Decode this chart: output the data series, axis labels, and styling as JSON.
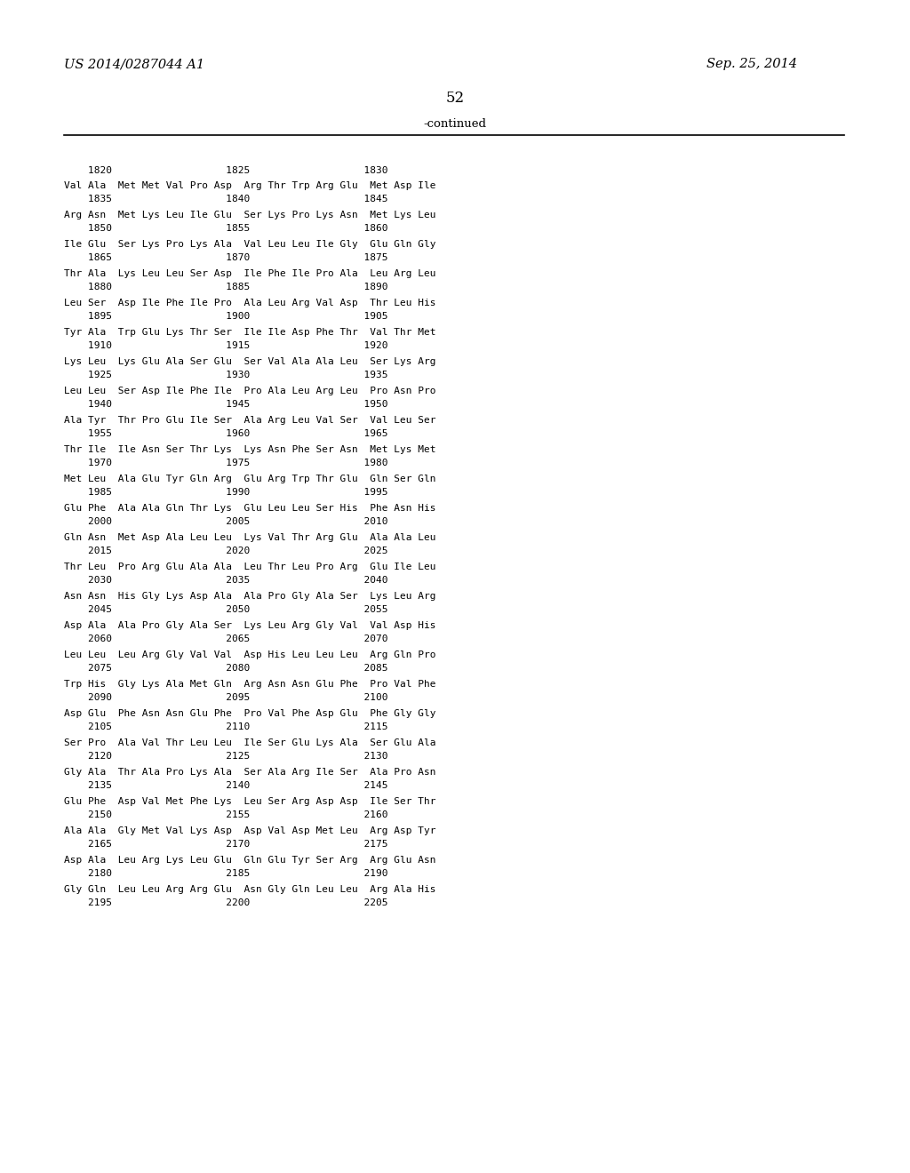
{
  "patent_number": "US 2014/0287044 A1",
  "date": "Sep. 25, 2014",
  "page_number": "52",
  "continued_label": "-continued",
  "background_color": "#ffffff",
  "text_color": "#000000",
  "blocks": [
    {
      "seq": "Val Ala  Met Met Val Pro Asp  Arg Thr Trp Arg Glu  Met Asp Ile",
      "nums": "    1835                   1840                   1845"
    },
    {
      "seq": "Arg Asn  Met Lys Leu Ile Glu  Ser Lys Pro Lys Asn  Met Lys Leu",
      "nums": "    1850                   1855                   1860"
    },
    {
      "seq": "Ile Glu  Ser Lys Pro Lys Ala  Val Leu Leu Ile Gly  Glu Gln Gly",
      "nums": "    1865                   1870                   1875"
    },
    {
      "seq": "Thr Ala  Lys Leu Leu Ser Asp  Ile Phe Ile Pro Ala  Leu Arg Leu",
      "nums": "    1880                   1885                   1890"
    },
    {
      "seq": "Leu Ser  Asp Ile Phe Ile Pro  Ala Leu Arg Val Asp  Thr Leu His",
      "nums": "    1895                   1900                   1905"
    },
    {
      "seq": "Tyr Ala  Trp Glu Lys Thr Ser  Ile Ile Asp Phe Thr  Val Thr Met",
      "nums": "    1910                   1915                   1920"
    },
    {
      "seq": "Lys Leu  Lys Glu Ala Ser Glu  Ser Val Ala Ala Leu  Ser Lys Arg",
      "nums": "    1925                   1930                   1935"
    },
    {
      "seq": "Leu Leu  Ser Asp Ile Phe Ile  Pro Ala Leu Arg Leu  Pro Asn Pro",
      "nums": "    1940                   1945                   1950"
    },
    {
      "seq": "Ala Tyr  Thr Pro Glu Ile Ser  Ala Arg Leu Val Ser  Val Leu Ser",
      "nums": "    1955                   1960                   1965"
    },
    {
      "seq": "Thr Ile  Ile Asn Ser Thr Lys  Lys Asn Phe Ser Asn  Met Lys Met",
      "nums": "    1970                   1975                   1980"
    },
    {
      "seq": "Met Leu  Ala Glu Tyr Gln Arg  Glu Arg Trp Thr Glu  Gln Ser Gln",
      "nums": "    1985                   1990                   1995"
    },
    {
      "seq": "Glu Phe  Ala Ala Gln Thr Lys  Glu Leu Leu Ser His  Phe Asn His",
      "nums": "    2000                   2005                   2010"
    },
    {
      "seq": "Gln Asn  Met Asp Ala Leu Leu  Lys Val Thr Arg Glu  Ala Ala Leu",
      "nums": "    2015                   2020                   2025"
    },
    {
      "seq": "Thr Leu  Pro Arg Glu Ala Ala  Leu Thr Leu Pro Arg  Glu Ile Leu",
      "nums": "    2030                   2035                   2040"
    },
    {
      "seq": "Asn Asn  His Gly Lys Asp Ala  Ala Pro Gly Ala Ser  Lys Leu Arg",
      "nums": "    2045                   2050                   2055"
    },
    {
      "seq": "Asp Ala  Ala Pro Gly Ala Ser  Lys Leu Arg Gly Val  Val Asp His",
      "nums": "    2060                   2065                   2070"
    },
    {
      "seq": "Leu Leu  Leu Arg Gly Val Val  Asp His Leu Leu Leu  Arg Gln Pro",
      "nums": "    2075                   2080                   2085"
    },
    {
      "seq": "Trp His  Gly Lys Ala Met Gln  Arg Asn Asn Glu Phe  Pro Val Phe",
      "nums": "    2090                   2095                   2100"
    },
    {
      "seq": "Asp Glu  Phe Asn Asn Glu Phe  Pro Val Phe Asp Glu  Phe Gly Gly",
      "nums": "    2105                   2110                   2115"
    },
    {
      "seq": "Ser Pro  Ala Val Thr Leu Leu  Ile Ser Glu Lys Ala  Ser Glu Ala",
      "nums": "    2120                   2125                   2130"
    },
    {
      "seq": "Gly Ala  Thr Ala Pro Lys Ala  Ser Ala Arg Ile Ser  Ala Pro Asn",
      "nums": "    2135                   2140                   2145"
    },
    {
      "seq": "Glu Phe  Asp Val Met Phe Lys  Leu Ser Arg Asp Asp  Ile Ser Thr",
      "nums": "    2150                   2155                   2160"
    },
    {
      "seq": "Ala Ala  Gly Met Val Lys Asp  Asp Val Asp Met Leu  Arg Asp Tyr",
      "nums": "    2165                   2170                   2175"
    },
    {
      "seq": "Asp Ala  Leu Arg Lys Leu Glu  Gln Glu Tyr Ser Arg  Arg Glu Asn",
      "nums": "    2180                   2185                   2190"
    },
    {
      "seq": "Gly Gln  Leu Leu Arg Arg Glu  Asn Gly Gln Leu Leu  Arg Ala His",
      "nums": "    2195                   2200                   2205"
    }
  ],
  "first_num_line": "    1820                   1825                   1830"
}
